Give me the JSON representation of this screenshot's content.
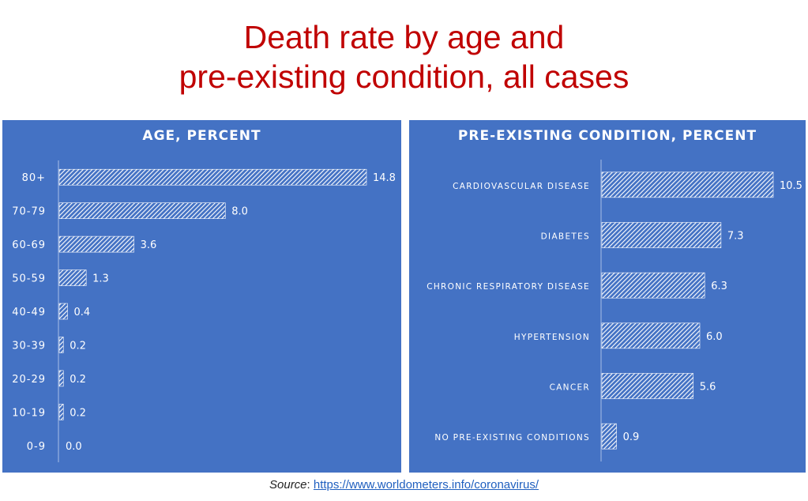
{
  "title_line1": "Death rate by age and",
  "title_line2": "pre-existing condition, all cases",
  "source_label": "Source",
  "source_sep": ": ",
  "source_url": "https://www.worldometers.info/coronavirus/",
  "colors": {
    "panel": "#4472c4",
    "title": "#c00000",
    "bar": "#ffffff"
  },
  "chart_data": [
    {
      "type": "bar",
      "orientation": "horizontal",
      "title": "AGE, PERCENT",
      "categories": [
        "80+",
        "70-79",
        "60-69",
        "50-59",
        "40-49",
        "30-39",
        "20-29",
        "10-19",
        "0-9"
      ],
      "values": [
        14.8,
        8.0,
        3.6,
        1.3,
        0.4,
        0.2,
        0.2,
        0.2,
        0.0
      ],
      "labels": [
        "14.8",
        "8.0",
        "3.6",
        "1.3",
        "0.4",
        "0.2",
        "0.2",
        "0.2",
        "0.0"
      ],
      "xlabel": "",
      "ylabel": "",
      "xlim": [
        0,
        14.8
      ],
      "grid": false
    },
    {
      "type": "bar",
      "orientation": "horizontal",
      "title": "PRE-EXISTING CONDITION, PERCENT",
      "categories": [
        "CARDIOVASCULAR DISEASE",
        "DIABETES",
        "CHRONIC RESPIRATORY DISEASE",
        "HYPERTENSION",
        "CANCER",
        "NO PRE-EXISTING CONDITIONS"
      ],
      "values": [
        10.5,
        7.3,
        6.3,
        6.0,
        5.6,
        0.9
      ],
      "labels": [
        "10.5",
        "7.3",
        "6.3",
        "6.0",
        "5.6",
        "0.9"
      ],
      "xlabel": "",
      "ylabel": "",
      "xlim": [
        0,
        10.5
      ],
      "grid": false
    }
  ]
}
